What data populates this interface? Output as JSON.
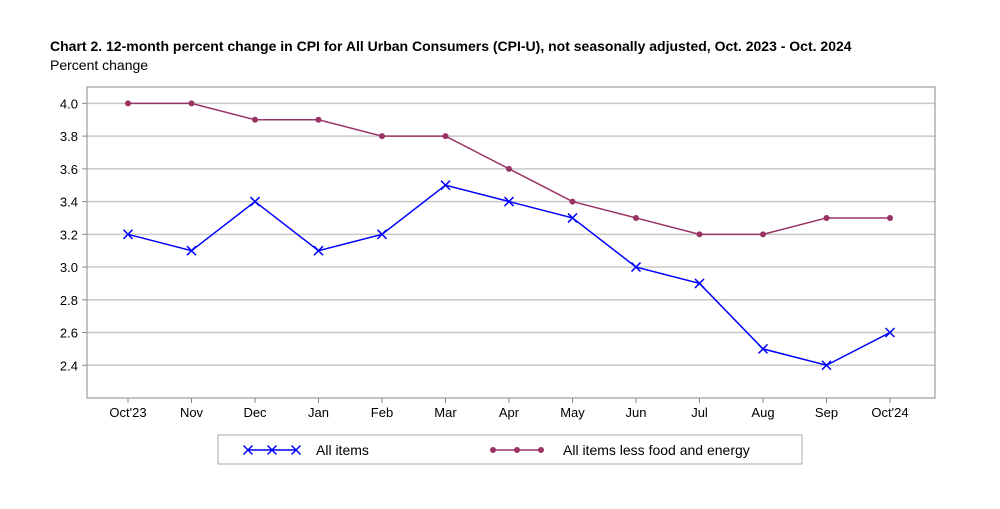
{
  "chart_data": {
    "type": "line",
    "title": "Chart 2. 12-month percent change in CPI for All Urban Consumers (CPI-U), not seasonally adjusted, Oct. 2023 - Oct. 2024",
    "ylabel": "Percent change",
    "xlabel": "",
    "categories": [
      "Oct'23",
      "Nov",
      "Dec",
      "Jan",
      "Feb",
      "Mar",
      "Apr",
      "May",
      "Jun",
      "Jul",
      "Aug",
      "Sep",
      "Oct'24"
    ],
    "ylim": [
      2.2,
      4.1
    ],
    "yticks": [
      "2.4",
      "2.6",
      "2.8",
      "3.0",
      "3.2",
      "3.4",
      "3.6",
      "3.8",
      "4.0"
    ],
    "grid": true,
    "legend_position": "bottom",
    "series": [
      {
        "name": "All items",
        "color": "#0000ff",
        "marker": "x",
        "values": [
          3.2,
          3.1,
          3.4,
          3.1,
          3.2,
          3.5,
          3.4,
          3.3,
          3.0,
          2.9,
          2.5,
          2.4,
          2.6
        ]
      },
      {
        "name": "All items less food and energy",
        "color": "#993366",
        "marker": "dot",
        "values": [
          4.0,
          4.0,
          3.9,
          3.9,
          3.8,
          3.8,
          3.6,
          3.4,
          3.3,
          3.2,
          3.2,
          3.3,
          3.3
        ]
      }
    ]
  }
}
